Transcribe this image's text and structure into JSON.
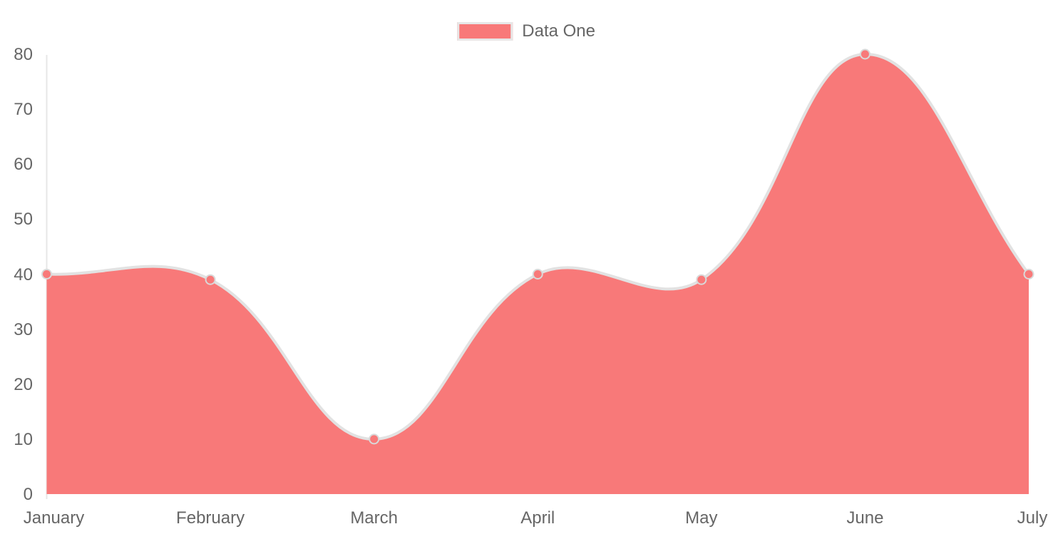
{
  "legend": {
    "label": "Data One",
    "swatch_color": "#f87979",
    "swatch_border_color": "#e7e7e7"
  },
  "chart_data": {
    "type": "area",
    "title": "",
    "xlabel": "",
    "ylabel": "",
    "categories": [
      "January",
      "February",
      "March",
      "April",
      "May",
      "June",
      "July"
    ],
    "series": [
      {
        "name": "Data One",
        "values": [
          40,
          39,
          10,
          40,
          39,
          80,
          40
        ]
      }
    ],
    "ylim": [
      0,
      80
    ],
    "y_ticks": [
      0,
      10,
      20,
      30,
      40,
      50,
      60,
      70,
      80
    ],
    "grid": false,
    "legend_position": "top-center",
    "line_tension": 0.4,
    "colors": {
      "fill": "#f87979",
      "line": "#e2e2e2",
      "point_fill": "#f87979",
      "point_border": "#d9d9d9",
      "axis_line": "#e7e7e7",
      "tick_label": "#666666"
    }
  }
}
